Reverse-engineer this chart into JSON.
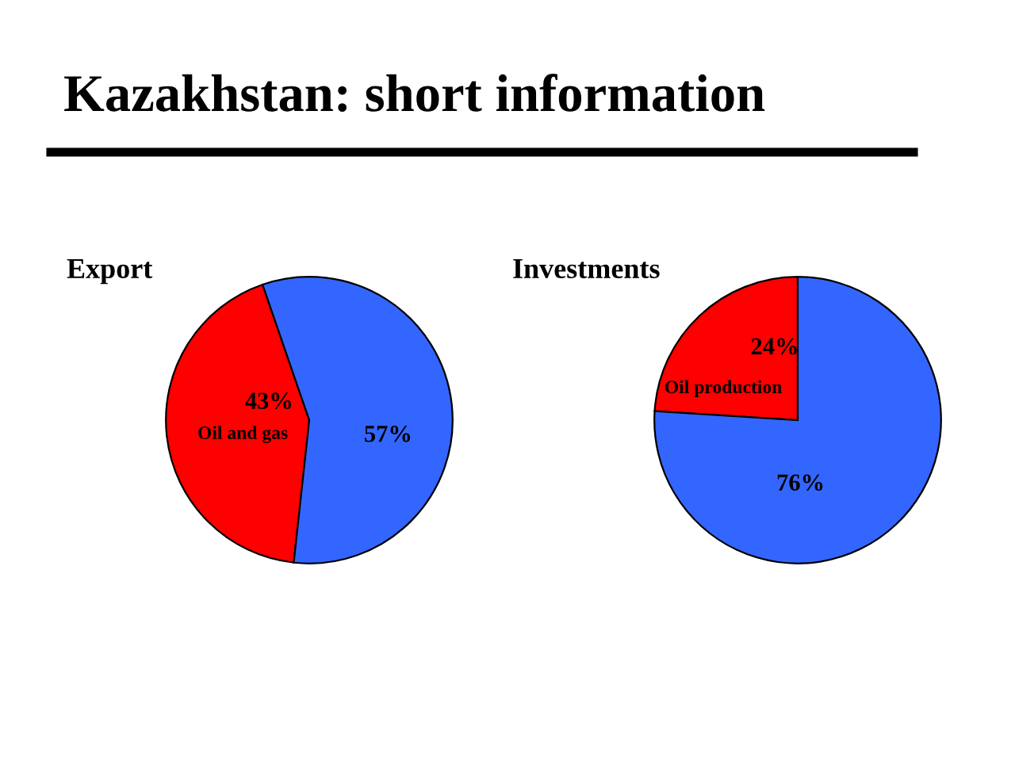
{
  "chart_data": [
    {
      "type": "pie",
      "title": "Export",
      "annotations": [
        "Kazakhstan: short information"
      ],
      "categories": [
        "Oil and gas",
        null
      ],
      "values": [
        43,
        57
      ],
      "colors": [
        "#ff0000",
        "#3366ff"
      ],
      "value_labels": [
        "43%",
        "57%"
      ],
      "legend": false
    },
    {
      "type": "pie",
      "title": "Investments",
      "categories": [
        "Oil production",
        null
      ],
      "values": [
        24,
        76
      ],
      "colors": [
        "#ff0000",
        "#3366ff"
      ],
      "value_labels": [
        "24%",
        "76%"
      ],
      "legend": false
    }
  ]
}
